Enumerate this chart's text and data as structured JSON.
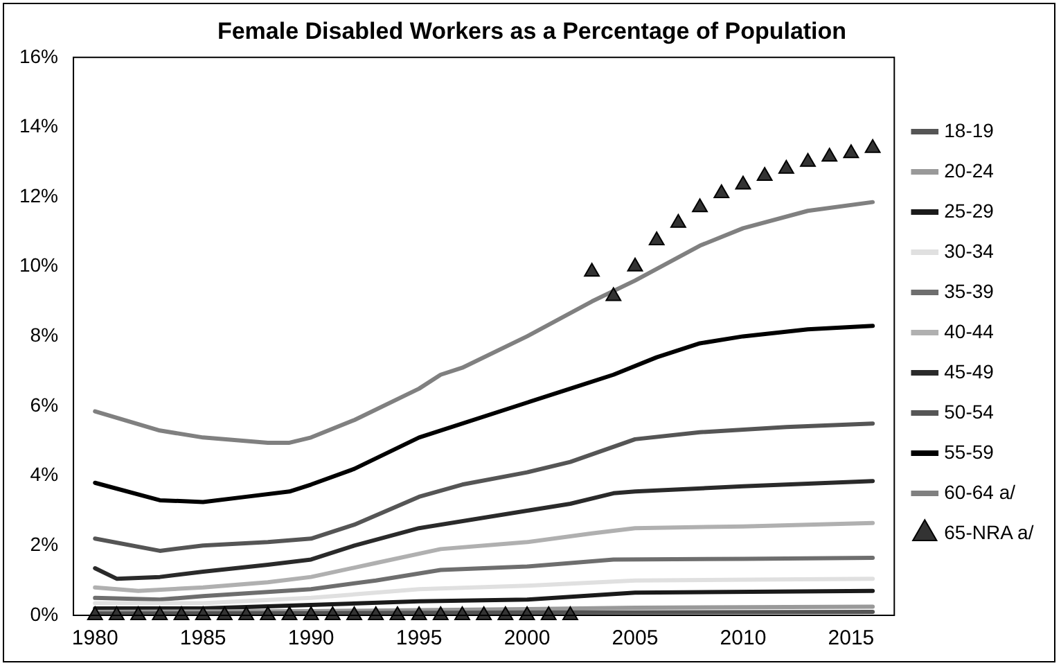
{
  "chart_data": {
    "type": "line",
    "title": "Female Disabled Workers as a Percentage of Population",
    "xlim": [
      1979,
      2017
    ],
    "xticks": [
      1980,
      1985,
      1990,
      1995,
      2000,
      2005,
      2010,
      2015
    ],
    "ylim": [
      0,
      16
    ],
    "yticks": [
      {
        "value": 0,
        "label": "0%"
      },
      {
        "value": 2,
        "label": "2%"
      },
      {
        "value": 4,
        "label": "4%"
      },
      {
        "value": 6,
        "label": "6%"
      },
      {
        "value": 8,
        "label": "8%"
      },
      {
        "value": 10,
        "label": "10%"
      },
      {
        "value": 12,
        "label": "12%"
      },
      {
        "value": 14,
        "label": "14%"
      },
      {
        "value": 16,
        "label": "16%"
      }
    ],
    "grid": false,
    "legend": "right",
    "marker": "none",
    "series": [
      {
        "name": "18-19",
        "color": "#555555",
        "x": [
          1980,
          1990,
          2000,
          2016
        ],
        "values": [
          0.05,
          0.06,
          0.08,
          0.1
        ]
      },
      {
        "name": "20-24",
        "color": "#999999",
        "x": [
          1980,
          1990,
          2000,
          2005,
          2016
        ],
        "values": [
          0.1,
          0.12,
          0.18,
          0.22,
          0.25
        ]
      },
      {
        "name": "25-29",
        "color": "#1a1a1a",
        "x": [
          1980,
          1985,
          1990,
          1995,
          2000,
          2005,
          2016
        ],
        "values": [
          0.2,
          0.2,
          0.3,
          0.4,
          0.45,
          0.65,
          0.7
        ]
      },
      {
        "name": "30-34",
        "color": "#e0e0e0",
        "x": [
          1980,
          1985,
          1990,
          1995,
          2000,
          2005,
          2016
        ],
        "values": [
          0.35,
          0.35,
          0.5,
          0.75,
          0.85,
          1.0,
          1.05
        ]
      },
      {
        "name": "35-39",
        "color": "#6e6e6e",
        "x": [
          1980,
          1983,
          1985,
          1990,
          1993,
          1996,
          2000,
          2004,
          2010,
          2016
        ],
        "values": [
          0.5,
          0.45,
          0.55,
          0.75,
          1.0,
          1.3,
          1.4,
          1.6,
          1.62,
          1.65
        ]
      },
      {
        "name": "40-44",
        "color": "#b0b0b0",
        "x": [
          1980,
          1982,
          1985,
          1988,
          1990,
          1993,
          1996,
          2000,
          2003,
          2005,
          2010,
          2016
        ],
        "values": [
          0.8,
          0.7,
          0.8,
          0.95,
          1.1,
          1.5,
          1.9,
          2.1,
          2.35,
          2.5,
          2.55,
          2.65
        ]
      },
      {
        "name": "45-49",
        "color": "#2a2a2a",
        "x": [
          1980,
          1981,
          1983,
          1985,
          1988,
          1990,
          1992,
          1995,
          2000,
          2002,
          2004,
          2005,
          2010,
          2016
        ],
        "values": [
          1.35,
          1.05,
          1.1,
          1.25,
          1.45,
          1.6,
          2.0,
          2.5,
          3.0,
          3.2,
          3.5,
          3.55,
          3.7,
          3.85
        ]
      },
      {
        "name": "50-54",
        "color": "#555555",
        "x": [
          1980,
          1983,
          1985,
          1988,
          1990,
          1992,
          1995,
          1997,
          2000,
          2002,
          2005,
          2008,
          2012,
          2016
        ],
        "values": [
          2.2,
          1.85,
          2.0,
          2.1,
          2.2,
          2.6,
          3.4,
          3.75,
          4.1,
          4.4,
          5.05,
          5.25,
          5.4,
          5.5
        ]
      },
      {
        "name": "55-59",
        "color": "#000000",
        "x": [
          1980,
          1983,
          1985,
          1987,
          1989,
          1990,
          1992,
          1995,
          2000,
          2002,
          2004,
          2006,
          2008,
          2010,
          2013,
          2016
        ],
        "values": [
          3.8,
          3.3,
          3.25,
          3.4,
          3.55,
          3.75,
          4.2,
          5.1,
          6.1,
          6.5,
          6.9,
          7.4,
          7.8,
          8.0,
          8.2,
          8.3
        ]
      },
      {
        "name": "60-64 a/",
        "color": "#808080",
        "x": [
          1980,
          1983,
          1985,
          1988,
          1989,
          1990,
          1992,
          1995,
          1996,
          1997,
          2000,
          2003,
          2005,
          2008,
          2010,
          2013,
          2016
        ],
        "values": [
          5.85,
          5.3,
          5.1,
          4.95,
          4.95,
          5.1,
          5.6,
          6.5,
          6.9,
          7.1,
          8.0,
          9.0,
          9.6,
          10.6,
          11.1,
          11.6,
          11.85
        ]
      },
      {
        "name": "65-NRA a/",
        "type": "scatter",
        "marker": "triangle",
        "color": "#333333",
        "x": [
          1980,
          1981,
          1982,
          1983,
          1984,
          1985,
          1986,
          1987,
          1988,
          1989,
          1990,
          1991,
          1992,
          1993,
          1994,
          1995,
          1996,
          1997,
          1998,
          1999,
          2000,
          2001,
          2002,
          2003,
          2004,
          2005,
          2006,
          2007,
          2008,
          2009,
          2010,
          2011,
          2012,
          2013,
          2014,
          2015,
          2016
        ],
        "values": [
          0,
          0,
          0,
          0,
          0,
          0,
          0,
          0,
          0,
          0,
          0,
          0,
          0,
          0,
          0,
          0,
          0,
          0,
          0,
          0,
          0,
          0,
          0,
          9.85,
          9.15,
          10.0,
          10.75,
          11.25,
          11.7,
          12.1,
          12.35,
          12.6,
          12.8,
          13.0,
          13.15,
          13.25,
          13.4
        ]
      }
    ]
  }
}
